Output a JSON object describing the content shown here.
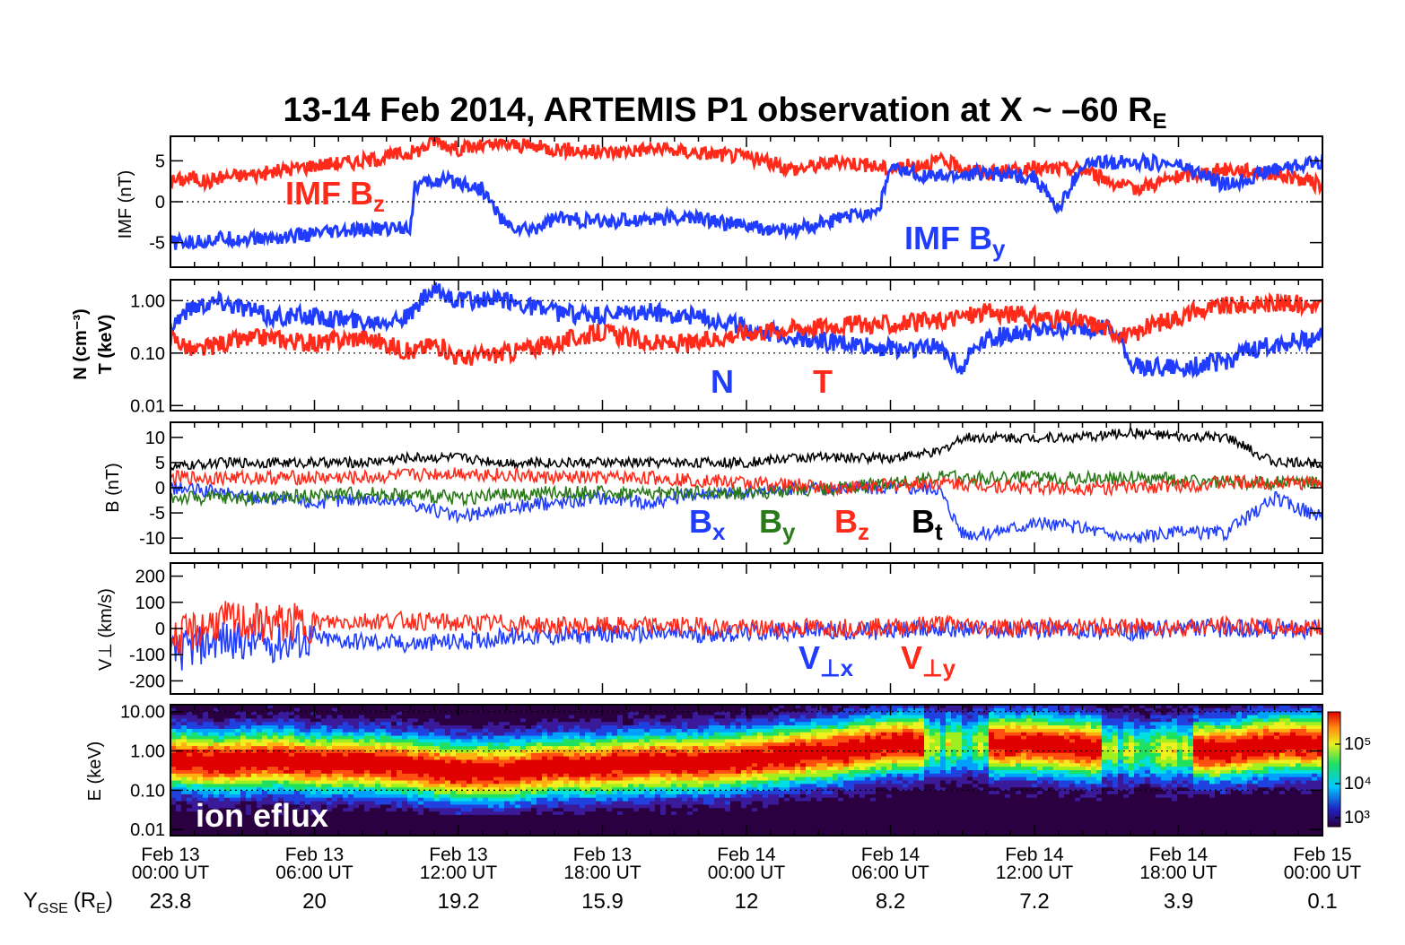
{
  "title": "13-14 Feb 2014, ARTEMIS P1 observation at X ~ –60 R",
  "title_sub": "E",
  "colors": {
    "red": "#ff2a1a",
    "blue": "#1f3cff",
    "green": "#2a7a1a",
    "black": "#000000"
  },
  "x_ticks": [
    {
      "date": "Feb 13",
      "time": "00:00 UT"
    },
    {
      "date": "Feb 13",
      "time": "06:00 UT"
    },
    {
      "date": "Feb 13",
      "time": "12:00 UT"
    },
    {
      "date": "Feb 13",
      "time": "18:00 UT"
    },
    {
      "date": "Feb 14",
      "time": "00:00 UT"
    },
    {
      "date": "Feb 14",
      "time": "06:00 UT"
    },
    {
      "date": "Feb 14",
      "time": "12:00 UT"
    },
    {
      "date": "Feb 14",
      "time": "18:00 UT"
    },
    {
      "date": "Feb 15",
      "time": "00:00 UT"
    }
  ],
  "ygse": {
    "label": "Y",
    "label_sub": "GSE",
    "label_tail": "(R",
    "label_tail_sub": "E",
    "label_close": ")",
    "values": [
      "23.8",
      "20",
      "19.2",
      "15.9",
      "12",
      "8.2",
      "7.2",
      "3.9",
      "0.1"
    ]
  },
  "chart_data": [
    {
      "type": "line",
      "panel": "imf",
      "ylabel": "IMF (nT)",
      "ylim": [
        -8,
        8
      ],
      "yticks": [
        "5",
        "0",
        "-5"
      ],
      "series": [
        {
          "name": "IMF B",
          "sub": "z",
          "color": "#ff2a1a",
          "x_hours": [
            0,
            1,
            1.5,
            2,
            4,
            6,
            8,
            10,
            10.5,
            11,
            12,
            14,
            16,
            18,
            20,
            22,
            24,
            26,
            28,
            30,
            32,
            34,
            36,
            38,
            40,
            42,
            44,
            46,
            48
          ],
          "values": [
            2.5,
            3,
            2.3,
            3,
            3.5,
            4.5,
            5,
            6,
            6.5,
            7.5,
            6.5,
            7,
            6.5,
            6,
            6.5,
            6,
            5.5,
            4,
            5,
            4,
            5,
            3.5,
            4,
            4,
            1.5,
            3,
            4,
            3.5,
            2
          ]
        },
        {
          "name": "IMF B",
          "sub": "y",
          "color": "#1f3cff",
          "x_hours": [
            0,
            1,
            2,
            4,
            6,
            8,
            10,
            10.2,
            11,
            12,
            13,
            14,
            15,
            16,
            18,
            20,
            22,
            24,
            25,
            26,
            28,
            29.5,
            30,
            32,
            34,
            36,
            37,
            38,
            40,
            42,
            44,
            46,
            48
          ],
          "values": [
            -5,
            -5,
            -4.5,
            -4.5,
            -4,
            -3.5,
            -3,
            2,
            2.5,
            2.5,
            1.5,
            -3,
            -3.5,
            -2,
            -2.5,
            -2,
            -2,
            -3,
            -3.5,
            -3.5,
            -2,
            -1,
            4,
            3,
            3.5,
            3,
            -1,
            4.5,
            5,
            4.5,
            2,
            4,
            5
          ]
        }
      ]
    },
    {
      "type": "line",
      "panel": "density_temperature",
      "ylabel_n": "N (cm⁻³)",
      "ylabel_t": "T (keV)",
      "log_scale": true,
      "ylim": [
        0.008,
        2.5
      ],
      "yticks": [
        "1.00",
        "0.10",
        "0.01"
      ],
      "series": [
        {
          "name": "N",
          "color": "#1f3cff",
          "x_hours": [
            0,
            1,
            2,
            4,
            6,
            8,
            10,
            11,
            12,
            14,
            16,
            18,
            20,
            22,
            24,
            26,
            28,
            30,
            32,
            33,
            34,
            36,
            38,
            39,
            40,
            42,
            44,
            46,
            48
          ],
          "values": [
            0.3,
            0.8,
            1.0,
            0.5,
            0.5,
            0.4,
            0.5,
            1.5,
            1.0,
            1.0,
            0.6,
            0.5,
            0.6,
            0.5,
            0.3,
            0.2,
            0.15,
            0.12,
            0.13,
            0.05,
            0.2,
            0.25,
            0.3,
            0.3,
            0.06,
            0.05,
            0.07,
            0.15,
            0.2
          ]
        },
        {
          "name": "T",
          "color": "#ff2a1a",
          "x_hours": [
            0,
            1,
            2,
            4,
            6,
            8,
            10,
            11,
            12,
            14,
            16,
            18,
            20,
            22,
            24,
            26,
            28,
            30,
            32,
            34,
            36,
            38,
            40,
            42,
            44,
            46,
            48
          ],
          "values": [
            0.2,
            0.1,
            0.15,
            0.2,
            0.15,
            0.2,
            0.1,
            0.15,
            0.08,
            0.1,
            0.15,
            0.25,
            0.15,
            0.15,
            0.25,
            0.3,
            0.35,
            0.35,
            0.4,
            0.6,
            0.5,
            0.4,
            0.2,
            0.5,
            0.8,
            0.9,
            0.8
          ]
        }
      ]
    },
    {
      "type": "line",
      "panel": "magnetic_field",
      "ylabel": "B (nT)",
      "ylim": [
        -13,
        13
      ],
      "yticks": [
        "10",
        "5",
        "0",
        "-5",
        "-10"
      ],
      "series": [
        {
          "name": "B",
          "sub": "x",
          "color": "#1f3cff",
          "x_hours": [
            0,
            2,
            4,
            6,
            8,
            10,
            12,
            14,
            16,
            18,
            20,
            22,
            24,
            26,
            28,
            30,
            32,
            33,
            34,
            36,
            38,
            40,
            42,
            44,
            46,
            48
          ],
          "values": [
            0,
            -1,
            -2,
            -3,
            -2,
            -3,
            -6,
            -4,
            -3,
            -2,
            -3,
            -1,
            -1,
            0,
            0,
            0,
            0,
            -9,
            -9,
            -7,
            -8,
            -10,
            -9,
            -9,
            -2,
            -6
          ]
        },
        {
          "name": "B",
          "sub": "y",
          "color": "#2a7a1a",
          "x_hours": [
            0,
            4,
            8,
            12,
            16,
            20,
            24,
            28,
            32,
            36,
            40,
            44,
            48
          ],
          "values": [
            -2,
            -2,
            -1,
            -2,
            -1,
            -1,
            -1,
            0,
            2,
            2,
            2,
            1,
            1
          ]
        },
        {
          "name": "B",
          "sub": "z",
          "color": "#ff2a1a",
          "x_hours": [
            0,
            4,
            8,
            12,
            16,
            20,
            24,
            28,
            32,
            36,
            40,
            44,
            48
          ],
          "values": [
            2,
            2,
            2,
            3,
            2,
            2,
            1,
            0,
            1,
            0,
            0,
            1,
            1
          ]
        },
        {
          "name": "B",
          "sub": "t",
          "color": "#000000",
          "x_hours": [
            0,
            2,
            4,
            6,
            8,
            10,
            12,
            14,
            16,
            18,
            20,
            22,
            24,
            26,
            28,
            30,
            32,
            33,
            34,
            36,
            38,
            40,
            42,
            44,
            46,
            48
          ],
          "values": [
            4,
            5,
            5,
            5,
            5,
            6,
            6,
            5,
            5,
            5,
            5,
            5,
            5,
            6,
            6,
            6,
            7,
            10,
            10,
            10,
            10,
            11,
            10,
            10,
            5,
            5
          ]
        }
      ]
    },
    {
      "type": "line",
      "panel": "perpendicular_velocity",
      "ylabel": "V⊥ (km/s)",
      "ylim": [
        -250,
        250
      ],
      "yticks": [
        "200",
        "100",
        "0",
        "-100",
        "-200"
      ],
      "series": [
        {
          "name": "V",
          "sub": "⊥x",
          "color": "#1f3cff",
          "x_hours": [
            0,
            2,
            4,
            6,
            8,
            10,
            12,
            14,
            16,
            18,
            20,
            22,
            24,
            26,
            28,
            30,
            32,
            34,
            36,
            38,
            40,
            42,
            44,
            46,
            48
          ],
          "values": [
            -100,
            -40,
            -60,
            -40,
            -50,
            -60,
            -50,
            -30,
            -30,
            -20,
            -20,
            -20,
            -15,
            -10,
            -10,
            -10,
            0,
            -5,
            -5,
            -5,
            -10,
            0,
            0,
            -5,
            0
          ]
        },
        {
          "name": "V",
          "sub": "⊥y",
          "color": "#ff2a1a",
          "x_hours": [
            0,
            2,
            4,
            6,
            8,
            10,
            12,
            14,
            16,
            18,
            20,
            22,
            24,
            26,
            28,
            30,
            32,
            34,
            36,
            38,
            40,
            42,
            44,
            46,
            48
          ],
          "values": [
            -50,
            30,
            20,
            20,
            30,
            30,
            20,
            20,
            10,
            10,
            10,
            10,
            0,
            5,
            5,
            5,
            20,
            5,
            5,
            5,
            5,
            5,
            10,
            5,
            0
          ]
        }
      ]
    },
    {
      "type": "heatmap",
      "panel": "ion_eflux_spectrogram",
      "ylabel": "E (keV)",
      "log_scale": true,
      "ylim": [
        0.007,
        15
      ],
      "yticks": [
        "10.00",
        "1.00",
        "0.10",
        "0.01"
      ],
      "colorbar_ticks": [
        "10⁵",
        "10⁴",
        "10³"
      ],
      "label": "ion eflux",
      "peak_energy_keV": {
        "x_hours": [
          0,
          2,
          4,
          6,
          8,
          10,
          12,
          14,
          16,
          18,
          20,
          22,
          24,
          26,
          28,
          30,
          32,
          34,
          36,
          38,
          40,
          42,
          44,
          46,
          48
        ],
        "values": [
          0.6,
          0.5,
          0.6,
          0.5,
          0.5,
          0.4,
          0.3,
          0.3,
          0.4,
          0.4,
          0.5,
          0.5,
          0.6,
          0.8,
          1.0,
          1.5,
          1.5,
          1.5,
          1.5,
          1.2,
          1.0,
          1.0,
          1.0,
          1.5,
          1.5
        ]
      }
    }
  ]
}
